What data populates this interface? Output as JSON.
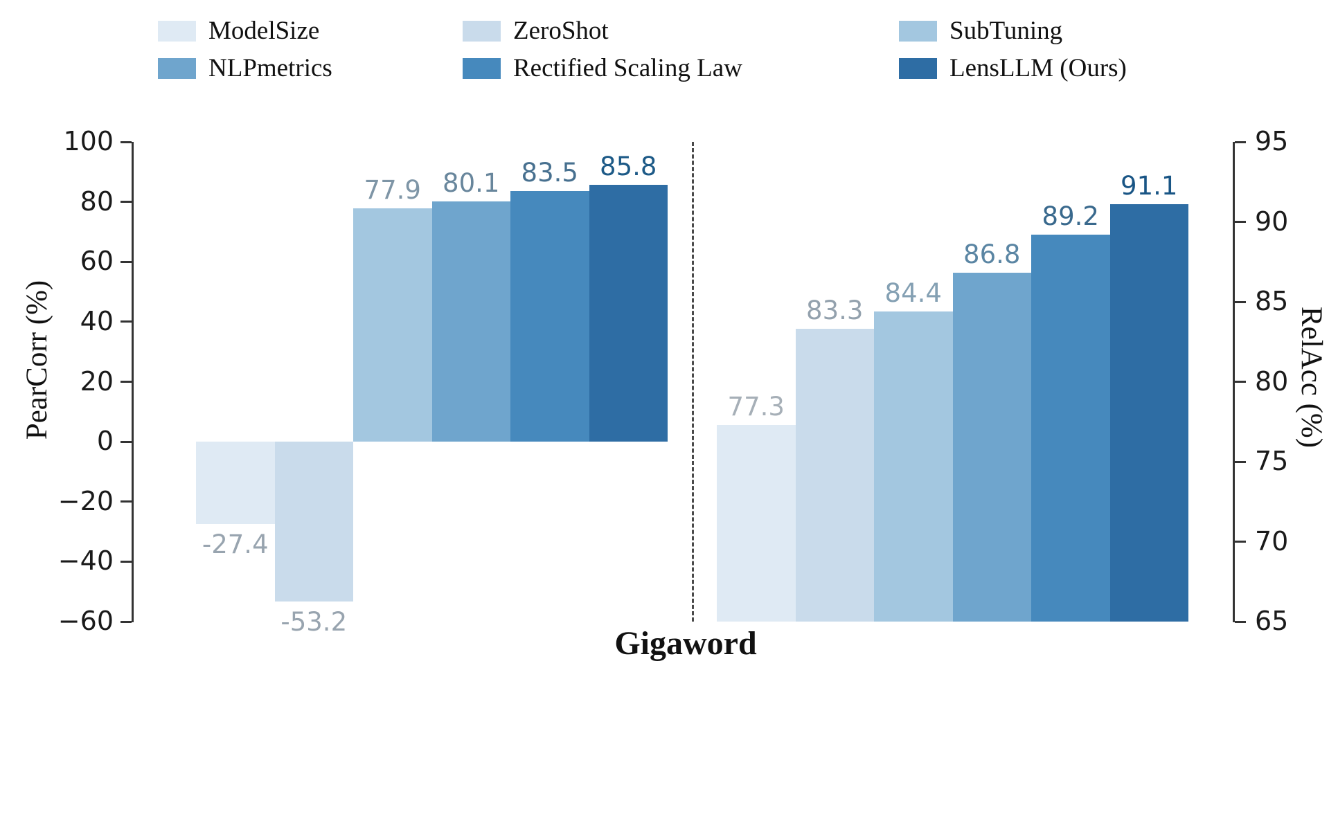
{
  "chart_data": {
    "type": "bar",
    "title": "Gigaword",
    "legend_position": "top",
    "legend": [
      {
        "label": "ModelSize",
        "color": "#dfeaf4"
      },
      {
        "label": "ZeroShot",
        "color": "#c9dbeb"
      },
      {
        "label": "SubTuning",
        "color": "#a3c7e0"
      },
      {
        "label": "NLPmetrics",
        "color": "#6fa5cd"
      },
      {
        "label": "Rectified Scaling Law",
        "color": "#4689bd"
      },
      {
        "label": "LensLLM (Ours)",
        "color": "#2e6da4"
      }
    ],
    "divider_between_panels": "dashed",
    "panels": [
      {
        "name": "PearCorr",
        "axis_label": "PearCorr (%)",
        "axis_side": "left",
        "ylim": [
          -60,
          100
        ],
        "yticks": [
          100,
          80,
          60,
          40,
          20,
          0,
          -20,
          -40,
          -60
        ],
        "categories": [
          "ModelSize",
          "ZeroShot",
          "SubTuning",
          "NLPmetrics",
          "Rectified Scaling Law",
          "LensLLM (Ours)"
        ],
        "values": [
          -27.4,
          -53.2,
          77.9,
          80.1,
          83.5,
          85.8
        ],
        "value_labels": [
          "-27.4",
          "-53.2",
          "77.9",
          "80.1",
          "83.5",
          "85.8"
        ],
        "value_label_colors": [
          "#98a4af",
          "#98a4af",
          "#7e95a6",
          "#68869c",
          "#47708f",
          "#1d5a87"
        ]
      },
      {
        "name": "RelAcc",
        "axis_label": "RelAcc (%)",
        "axis_side": "right",
        "ylim": [
          65,
          95
        ],
        "yticks": [
          95,
          90,
          85,
          80,
          75,
          70,
          65
        ],
        "categories": [
          "ModelSize",
          "ZeroShot",
          "SubTuning",
          "NLPmetrics",
          "Rectified Scaling Law",
          "LensLLM (Ours)"
        ],
        "values": [
          77.3,
          83.3,
          84.4,
          86.8,
          89.2,
          91.1
        ],
        "value_labels": [
          "77.3",
          "83.3",
          "84.4",
          "86.8",
          "89.2",
          "91.1"
        ],
        "value_label_colors": [
          "#a6afb7",
          "#93a1ad",
          "#84a0b3",
          "#5a85a3",
          "#39698d",
          "#195585"
        ]
      }
    ]
  }
}
